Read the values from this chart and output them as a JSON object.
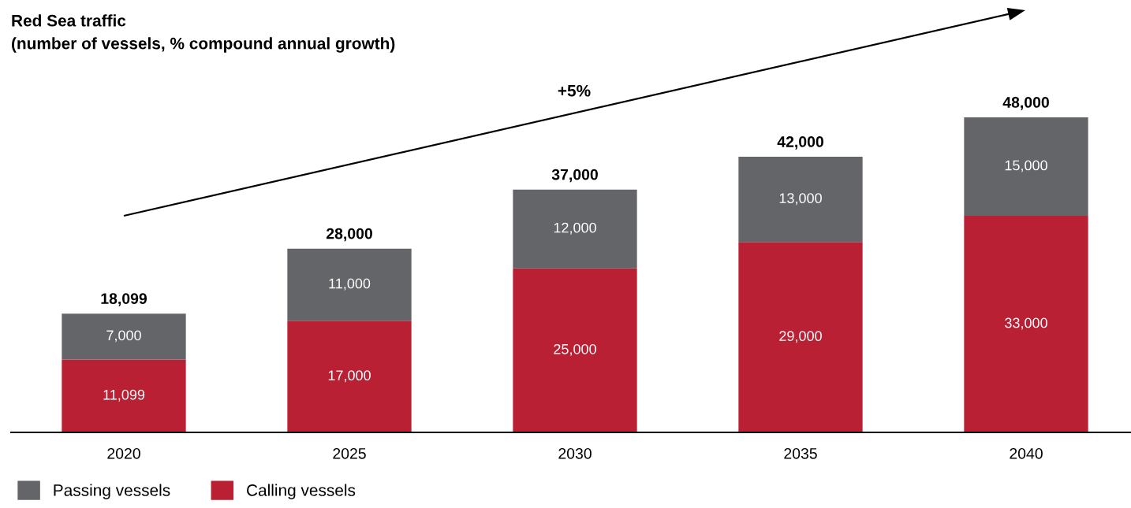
{
  "chart_data": {
    "type": "bar",
    "stacked": true,
    "title": "Red Sea traffic",
    "subtitle": "(number of vessels, % compound annual growth)",
    "categories": [
      "2020",
      "2025",
      "2030",
      "2035",
      "2040"
    ],
    "series": [
      {
        "name": "Calling vessels",
        "color": "#b92034",
        "values": [
          11099,
          17000,
          25000,
          29000,
          33000
        ],
        "value_labels": [
          "11,099",
          "17,000",
          "25,000",
          "29,000",
          "33,000"
        ]
      },
      {
        "name": "Passing vessels",
        "color": "#646569",
        "values": [
          7000,
          11000,
          12000,
          13000,
          15000
        ],
        "value_labels": [
          "7,000",
          "11,000",
          "12,000",
          "13,000",
          "15,000"
        ]
      }
    ],
    "totals": [
      "18,099",
      "28,000",
      "37,000",
      "42,000",
      "48,000"
    ],
    "annotations": [
      "+5%"
    ],
    "legend": "bottom left",
    "grid": false
  }
}
